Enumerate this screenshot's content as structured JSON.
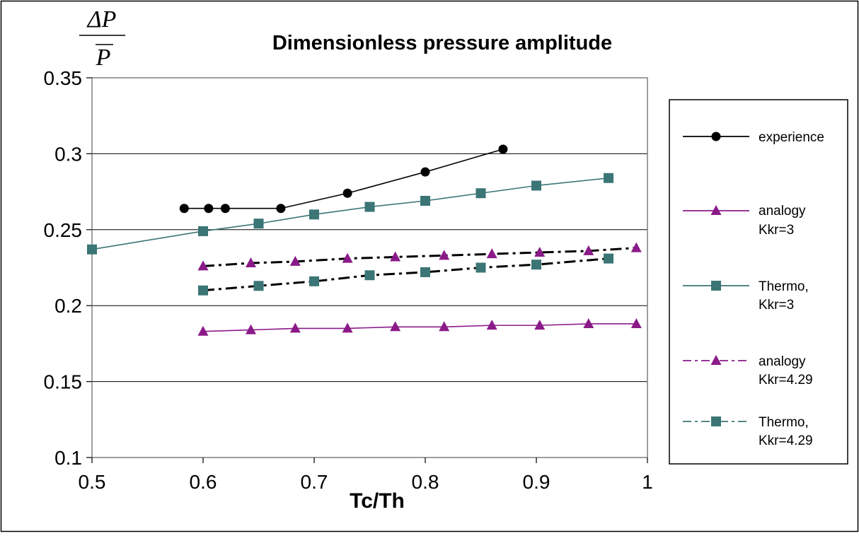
{
  "chart_data": {
    "type": "line",
    "title": "Dimensionless pressure amplitude",
    "xlabel": "Tc/Th",
    "ylabel": {
      "numerator": "ΔP",
      "denominator": "P"
    },
    "xlim": [
      0.5,
      1.0
    ],
    "ylim": [
      0.1,
      0.35
    ],
    "xticks": [
      "0.5",
      "0.6",
      "0.7",
      "0.8",
      "0.9",
      "1"
    ],
    "yticks": [
      "0.1",
      "0.15",
      "0.2",
      "0.25",
      "0.3",
      "0.35"
    ],
    "grid": "horizontal",
    "legend_position": "right",
    "series": [
      {
        "name": "experience",
        "color": "#000000",
        "marker": "circle",
        "dash": "solid",
        "width": 1.6,
        "x": [
          0.583,
          0.605,
          0.62,
          0.67,
          0.73,
          0.8,
          0.87
        ],
        "y": [
          0.264,
          0.264,
          0.264,
          0.264,
          0.274,
          0.288,
          0.303
        ]
      },
      {
        "name": "analogy Kkr=3",
        "color": "#8b1a89",
        "marker": "triangle",
        "dash": "solid",
        "width": 1.6,
        "x": [
          0.6,
          0.643,
          0.683,
          0.73,
          0.773,
          0.817,
          0.86,
          0.903,
          0.947,
          0.99
        ],
        "y": [
          0.183,
          0.184,
          0.185,
          0.185,
          0.186,
          0.186,
          0.187,
          0.187,
          0.188,
          0.188
        ]
      },
      {
        "name": "Thermo, Kkr=3",
        "color": "#3b7575",
        "marker": "square",
        "dash": "solid",
        "width": 1.6,
        "x": [
          0.5,
          0.6,
          0.65,
          0.7,
          0.75,
          0.8,
          0.85,
          0.9,
          0.965
        ],
        "y": [
          0.237,
          0.249,
          0.254,
          0.26,
          0.265,
          0.269,
          0.274,
          0.279,
          0.284
        ]
      },
      {
        "name": "analogy Kkr=4.29",
        "color": "#8b1a89",
        "marker": "triangle",
        "dash": "dashdot",
        "width": 3,
        "x": [
          0.6,
          0.643,
          0.683,
          0.73,
          0.773,
          0.817,
          0.86,
          0.903,
          0.947,
          0.99
        ],
        "y": [
          0.226,
          0.228,
          0.229,
          0.231,
          0.232,
          0.233,
          0.234,
          0.235,
          0.236,
          0.238
        ]
      },
      {
        "name": "Thermo, Kkr=4.29",
        "color": "#3b7575",
        "marker": "square",
        "dash": "dashdot",
        "width": 3,
        "x": [
          0.6,
          0.65,
          0.7,
          0.75,
          0.8,
          0.85,
          0.9,
          0.965
        ],
        "y": [
          0.21,
          0.213,
          0.216,
          0.22,
          0.222,
          0.225,
          0.227,
          0.231
        ]
      }
    ],
    "legend": [
      {
        "lines": [
          "experience"
        ]
      },
      {
        "lines": [
          "analogy",
          "Kkr=3"
        ]
      },
      {
        "lines": [
          "Thermo,",
          "Kkr=3"
        ]
      },
      {
        "lines": [
          "analogy",
          "Kkr=4.29"
        ]
      },
      {
        "lines": [
          "Thermo,",
          "Kkr=4.29"
        ]
      }
    ]
  }
}
